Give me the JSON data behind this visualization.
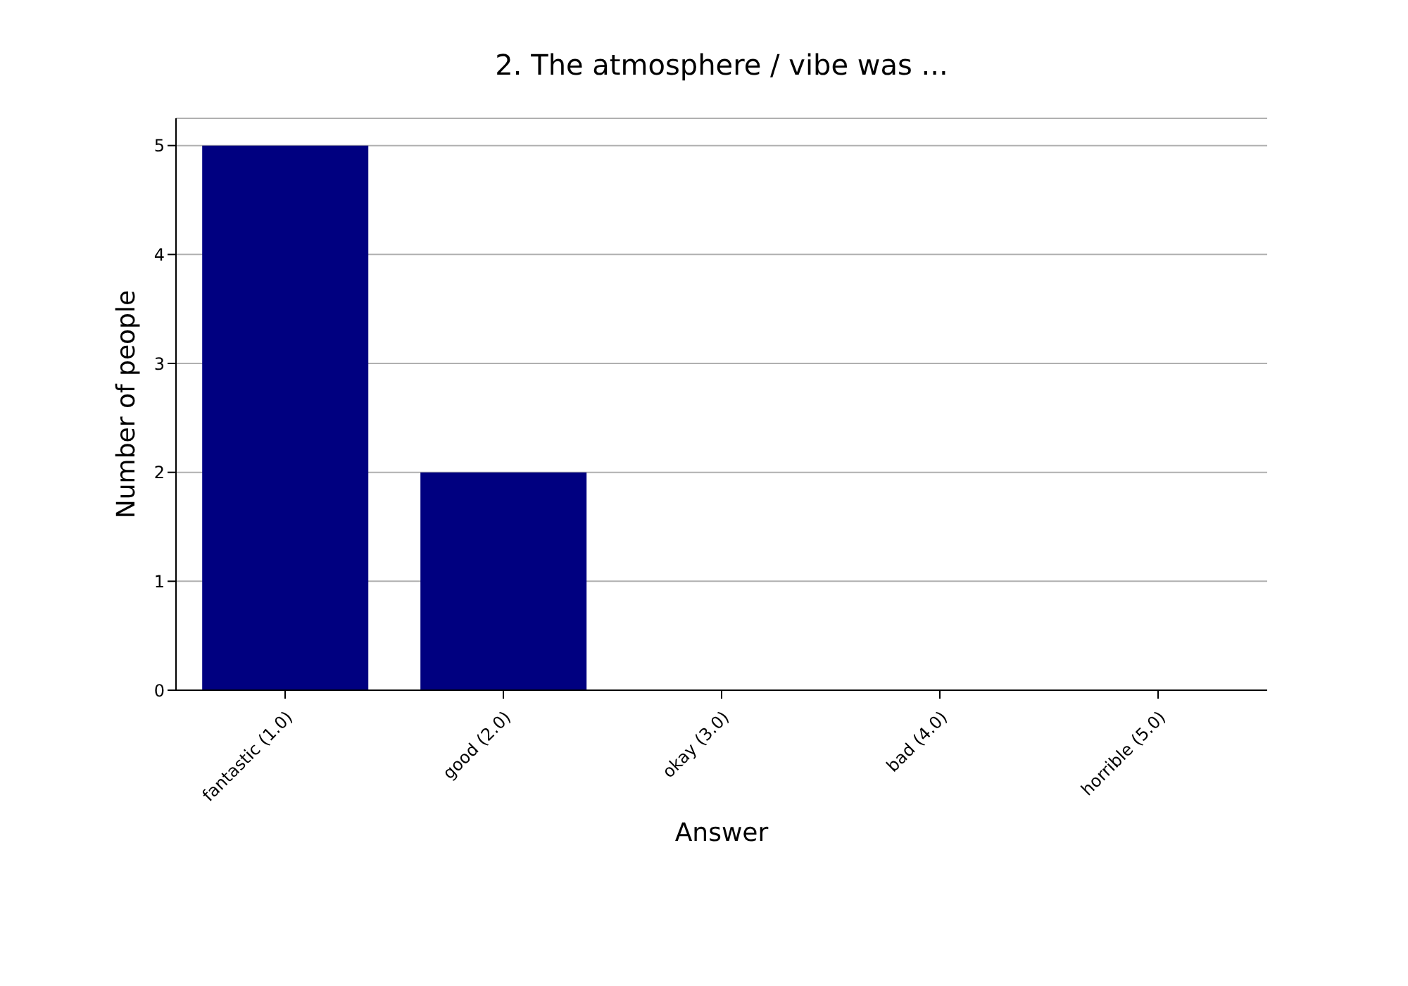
{
  "chart_data": {
    "type": "bar",
    "title": "2. The atmosphere / vibe was ...",
    "xlabel": "Answer",
    "ylabel": "Number of people",
    "categories": [
      "fantastic (1.0)",
      "good (2.0)",
      "okay (3.0)",
      "bad (4.0)",
      "horrible (5.0)"
    ],
    "values": [
      5,
      2,
      0,
      0,
      0
    ],
    "color": "#000080",
    "ylim": [
      0,
      5.25
    ],
    "yticks": [
      0,
      1,
      2,
      3,
      4,
      5
    ],
    "grid": "y"
  }
}
